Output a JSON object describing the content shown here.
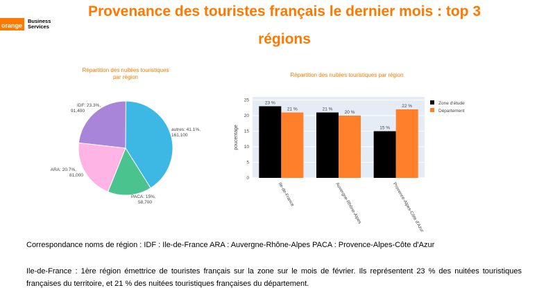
{
  "header": {
    "logo_brand": "orange",
    "logo_line1": "Business",
    "logo_line2": "Services",
    "title_line1": "Provenance des touristes français le dernier mois : top 3",
    "title_line2": "régions"
  },
  "chart_data": [
    {
      "type": "pie",
      "title_line1": "Répartition des nuitées touristiques",
      "title_line2": "par région",
      "slices": [
        {
          "name": "autres",
          "label": "autres: 41.1%,",
          "percent": 41.1,
          "value_label": "161,100",
          "color": "#3db7e4"
        },
        {
          "name": "PACA",
          "label": "PACA: 15%,",
          "percent": 15,
          "value_label": "58,700",
          "color": "#4bc38f"
        },
        {
          "name": "ARA",
          "label": "ARA: 20.7%,",
          "percent": 20.7,
          "value_label": "81,000",
          "color": "#ffb4e6"
        },
        {
          "name": "IDF",
          "label": "IDF: 23.3%,",
          "percent": 23.3,
          "value_label": "91,400",
          "color": "#a885d8"
        }
      ]
    },
    {
      "type": "bar",
      "title": "Répartition des nuitées touristiques par région",
      "categories": [
        "Ile-de-France",
        "Auvergne-Rhône-Alpes",
        "Provence-Alpes-Côte d'Azur"
      ],
      "series": [
        {
          "name": "Zone d'étude",
          "values": [
            23,
            21,
            15
          ],
          "labels": [
            "23 %",
            "21 %",
            "15 %"
          ],
          "color": "#000000"
        },
        {
          "name": "Département",
          "values": [
            21,
            20,
            22
          ],
          "labels": [
            "21 %",
            "20 %",
            "22 %"
          ],
          "color": "#ff7f2a"
        }
      ],
      "ylabel": "poucentage",
      "ylim": [
        0,
        26
      ],
      "yticks": [
        0,
        5,
        10,
        15,
        20,
        25
      ],
      "grid": true,
      "legend": "top-right"
    }
  ],
  "text": {
    "correspondance": "Correspondance noms de région :  IDF : Ile-de-France  ARA : Auvergne-Rhône-Alpes  PACA : Provence-Alpes-Côte d'Azur",
    "description": "Ile-de-France : 1ère région émettrice de touristes français sur la zone sur le mois de février. Ils représentent 23 % des nuitées touristiques françaises du territoire, et 21 % des nuitées touristiques françaises du département."
  }
}
